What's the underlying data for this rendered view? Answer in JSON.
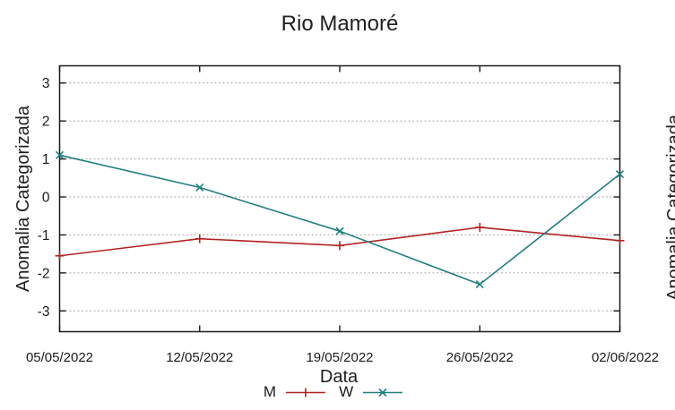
{
  "page": {
    "background": "#ffffff"
  },
  "chart_data": {
    "type": "line",
    "title": "Rio Mamoré",
    "xlabel": "Data",
    "ylabel": "Anomalia Categorizada",
    "categories": [
      "05/05/2022",
      "12/05/2022",
      "19/05/2022",
      "26/05/2022",
      "02/06/2022"
    ],
    "y_ticks": [
      3,
      2,
      1,
      0,
      -1,
      -2,
      -3
    ],
    "ylim": [
      -3.5,
      3.5
    ],
    "grid": {
      "horizontal": true,
      "style": "dotted",
      "color": "#a8a8a8"
    },
    "axis_color": "#1a1a1a",
    "legend_position": "bottom-center",
    "series": [
      {
        "name": "M",
        "color": "#b22222",
        "marker": "plus",
        "values": [
          -1.55,
          -1.1,
          -1.28,
          -0.8,
          -1.15
        ]
      },
      {
        "name": "W",
        "color": "#1f7f7f",
        "marker": "cross",
        "values": [
          1.1,
          0.25,
          -0.9,
          -2.3,
          0.6
        ]
      }
    ]
  },
  "clipped_right_chart": {
    "ylabel": "Anomalia Categorizada"
  }
}
